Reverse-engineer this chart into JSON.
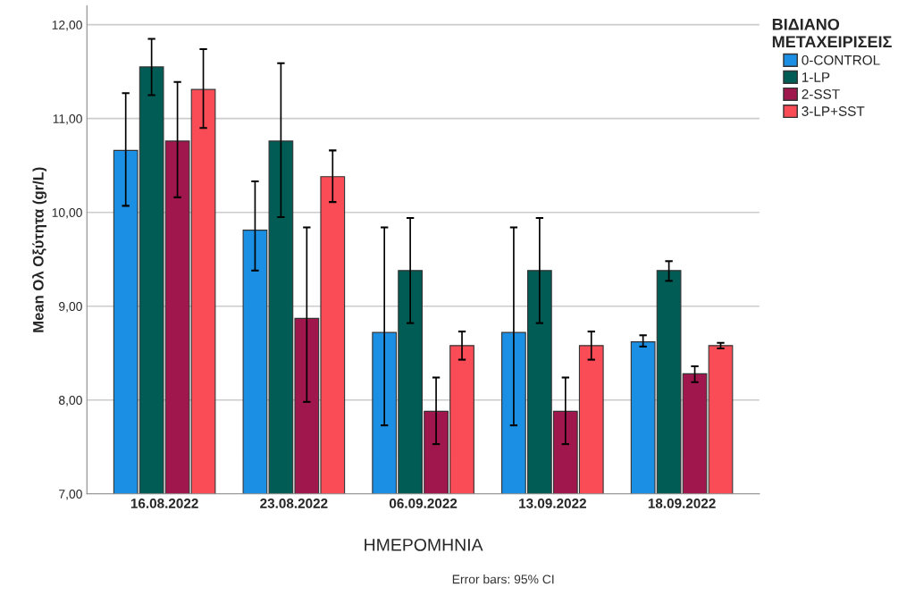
{
  "chart_data": {
    "type": "bar",
    "xlabel": "ΗΜΕΡΟΜΗΝΙΑ",
    "ylabel": "Mean Ολ Οξύτητα (gr/L)",
    "legend_title": "ΒΙΔΙΑΝΟ\nΜΕΤΑΧΕΙΡΙΣΕΙΣ",
    "categories": [
      "16.08.2022",
      "23.08.2022",
      "06.09.2022",
      "13.09.2022",
      "18.09.2022"
    ],
    "series": [
      {
        "name": "0-CONTROL",
        "color": "#1a8fe3",
        "values": [
          10.66,
          9.81,
          8.72,
          8.72,
          8.62
        ],
        "errors": [
          [
            10.07,
            11.27
          ],
          [
            9.38,
            10.33
          ],
          [
            7.73,
            9.84
          ],
          [
            7.73,
            9.84
          ],
          [
            8.57,
            8.69
          ]
        ]
      },
      {
        "name": "1-LP",
        "color": "#005c55",
        "values": [
          11.55,
          10.76,
          9.38,
          9.38,
          9.38
        ],
        "errors": [
          [
            11.25,
            11.85
          ],
          [
            9.95,
            11.59
          ],
          [
            8.82,
            9.94
          ],
          [
            8.82,
            9.94
          ],
          [
            9.27,
            9.48
          ]
        ]
      },
      {
        "name": "2-SST",
        "color": "#a0174e",
        "values": [
          10.76,
          8.87,
          7.88,
          7.88,
          8.28
        ],
        "errors": [
          [
            10.16,
            11.39
          ],
          [
            7.98,
            9.84
          ],
          [
            7.53,
            8.24
          ],
          [
            7.53,
            8.24
          ],
          [
            8.19,
            8.36
          ]
        ]
      },
      {
        "name": "3-LP+SST",
        "color": "#fa4c56",
        "values": [
          11.31,
          10.38,
          8.58,
          8.58,
          8.58
        ],
        "errors": [
          [
            10.9,
            11.74
          ],
          [
            10.11,
            10.66
          ],
          [
            8.43,
            8.73
          ],
          [
            8.43,
            8.73
          ],
          [
            8.55,
            8.61
          ]
        ]
      }
    ],
    "ylim": [
      7,
      12.2
    ],
    "yticks": [
      {
        "value": 7,
        "label": "7,00"
      },
      {
        "value": 8,
        "label": "8,00"
      },
      {
        "value": 9,
        "label": "9,00"
      },
      {
        "value": 10,
        "label": "10,00"
      },
      {
        "value": 11,
        "label": "11,00"
      },
      {
        "value": 12,
        "label": "12,00"
      }
    ],
    "grid": "y",
    "legend": "top right",
    "annotations": [
      "Error bars: 95% CI"
    ]
  }
}
